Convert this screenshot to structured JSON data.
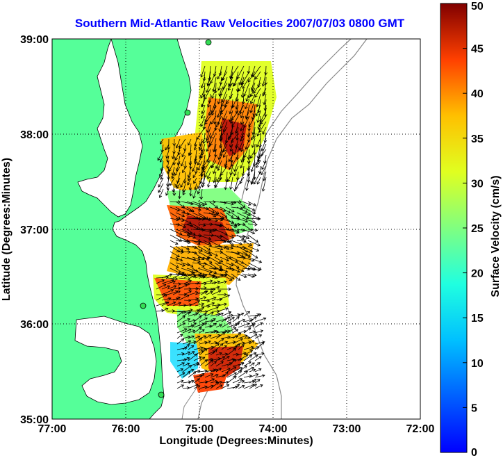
{
  "title": "Southern Mid-Atlantic Raw Velocities 2007/07/03 0800 GMT",
  "map": {
    "xlabel": "Longitude (Degrees:Minutes)",
    "ylabel": "Latitude (Degrees:Minutes)",
    "lon_ticks": [
      "77:00",
      "76:00",
      "75:00",
      "74:00",
      "73:00",
      "72:00"
    ],
    "lat_ticks": [
      "39:00",
      "38:00",
      "37:00",
      "36:00",
      "35:00"
    ],
    "xlim": [
      -77,
      -72
    ],
    "ylim": [
      35,
      39
    ],
    "grid": "dotted",
    "land_color": "#55ff99"
  },
  "colorbar": {
    "label": "Surface Velocity (cm/s)",
    "ticks": [
      "50",
      "45",
      "40",
      "35",
      "30",
      "25",
      "20",
      "15",
      "10",
      "5",
      "0"
    ],
    "range": [
      0,
      50
    ],
    "colormap": "jet"
  }
}
